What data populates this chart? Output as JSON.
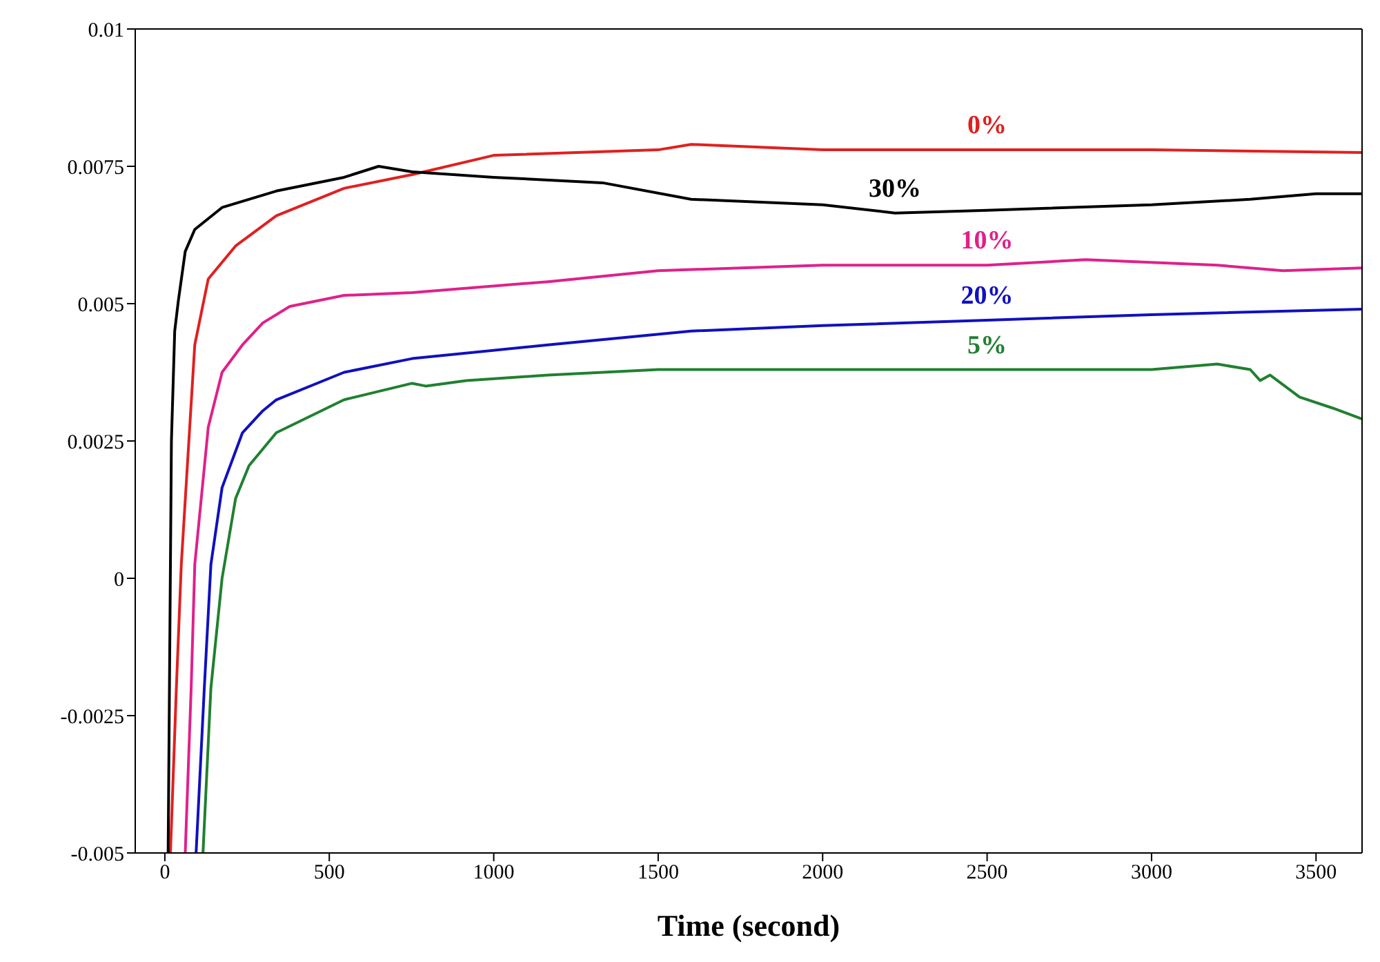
{
  "chart_data": {
    "type": "line",
    "xlabel": "Time (second)",
    "xlim": [
      -90,
      3640
    ],
    "xticks": [
      0,
      500,
      1000,
      1500,
      2000,
      2500,
      3000,
      3500
    ],
    "ylim": [
      -0.005,
      0.01
    ],
    "yticks": [
      -0.005,
      -0.0025,
      0,
      0.0025,
      0.005,
      0.0075,
      0.01
    ],
    "legend": false,
    "marker": "none",
    "line_style": "solid",
    "series": [
      {
        "name": "0%",
        "color": "#e02020",
        "x": [
          17,
          35,
          50,
          91,
          132,
          215,
          339,
          545,
          752,
          1000,
          1500,
          1600,
          2000,
          2500,
          3000,
          3640
        ],
        "values": [
          -0.005,
          -0.002,
          0.00025,
          0.00425,
          0.00545,
          0.00605,
          0.0066,
          0.0071,
          0.00735,
          0.0077,
          0.0078,
          0.0079,
          0.0078,
          0.0078,
          0.0078,
          0.00775
        ]
      },
      {
        "name": "30%",
        "color": "#000000",
        "x": [
          10,
          20,
          30,
          41,
          62,
          91,
          174,
          339,
          545,
          650,
          752,
          1000,
          1331,
          1600,
          2000,
          2220,
          2500,
          3000,
          3300,
          3500,
          3640
        ],
        "values": [
          -0.005,
          0.0025,
          0.0045,
          0.00505,
          0.00595,
          0.00635,
          0.00675,
          0.00705,
          0.0073,
          0.0075,
          0.0074,
          0.0073,
          0.0072,
          0.0069,
          0.0068,
          0.00665,
          0.0067,
          0.0068,
          0.0069,
          0.007,
          0.007
        ]
      },
      {
        "name": "10%",
        "color": "#e0208a",
        "x": [
          62,
          80,
          91,
          132,
          174,
          236,
          298,
          380,
          545,
          752,
          1165,
          1500,
          2000,
          2500,
          2800,
          3200,
          3400,
          3640
        ],
        "values": [
          -0.005,
          -0.002,
          0.00025,
          0.00275,
          0.00375,
          0.00425,
          0.00465,
          0.00495,
          0.00515,
          0.0052,
          0.0054,
          0.0056,
          0.0057,
          0.0057,
          0.0058,
          0.0057,
          0.0056,
          0.00565
        ]
      },
      {
        "name": "20%",
        "color": "#1010c0",
        "x": [
          95,
          120,
          140,
          174,
          236,
          298,
          339,
          545,
          752,
          1165,
          1600,
          2000,
          2500,
          3000,
          3640
        ],
        "values": [
          -0.005,
          -0.002,
          0.00025,
          0.00165,
          0.00265,
          0.00305,
          0.00325,
          0.00375,
          0.004,
          0.00425,
          0.0045,
          0.0046,
          0.0047,
          0.0048,
          0.0049
        ]
      },
      {
        "name": "5%",
        "color": "#208030",
        "x": [
          116,
          140,
          174,
          215,
          256,
          339,
          545,
          752,
          793,
          917,
          1165,
          1500,
          2000,
          2500,
          3000,
          3200,
          3300,
          3330,
          3360,
          3450,
          3550,
          3640
        ],
        "values": [
          -0.005,
          -0.002,
          0,
          0.00145,
          0.00205,
          0.00265,
          0.00325,
          0.00355,
          0.0035,
          0.0036,
          0.0037,
          0.0038,
          0.0038,
          0.0038,
          0.0038,
          0.0039,
          0.0038,
          0.0036,
          0.0037,
          0.0033,
          0.0031,
          0.0029
        ]
      }
    ]
  }
}
